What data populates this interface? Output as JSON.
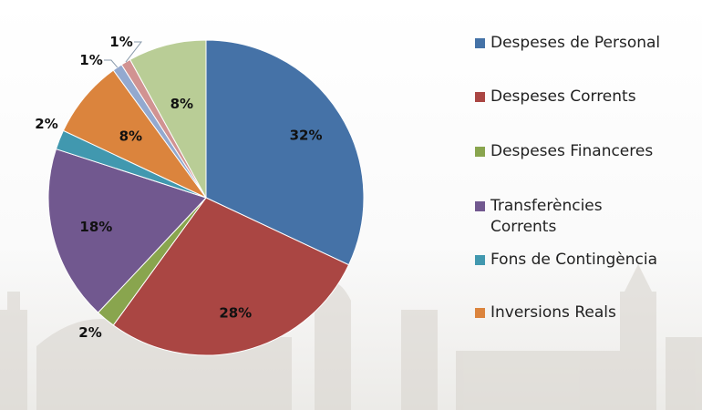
{
  "chart_data": {
    "type": "pie",
    "title": "",
    "start": "top",
    "direction": "clockwise",
    "slices": [
      {
        "name": "Despeses de Personal",
        "value": 32,
        "label": "32%",
        "color": "#4572a7"
      },
      {
        "name": "Despeses Corrents",
        "value": 28,
        "label": "28%",
        "color": "#aa4643"
      },
      {
        "name": "Despeses Financeres",
        "value": 2,
        "label": "2%",
        "color": "#89a54e"
      },
      {
        "name": "Transferències Corrents",
        "value": 18,
        "label": "18%",
        "color": "#71588f"
      },
      {
        "name": "Fons de Contingència",
        "value": 2,
        "label": "2%",
        "color": "#4198af"
      },
      {
        "name": "Inversions Reals",
        "value": 8,
        "label": "8%",
        "color": "#db843d"
      },
      {
        "name": "",
        "value": 1,
        "label": "1%",
        "color": "#93a9cf"
      },
      {
        "name": "",
        "value": 1,
        "label": "1%",
        "color": "#d19392"
      },
      {
        "name": "",
        "value": 8,
        "label": "8%",
        "color": "#b9cd96"
      }
    ],
    "legend": {
      "placement": "right",
      "entries": [
        {
          "label": "Despeses de Personal",
          "color": "#4572a7"
        },
        {
          "label": "Despeses Corrents",
          "color": "#aa4643"
        },
        {
          "label": "Despeses Financeres",
          "color": "#89a54e"
        },
        {
          "label": "Transferències Corrents",
          "color": "#71588f"
        },
        {
          "label": "Fons de Contingència",
          "color": "#4198af"
        },
        {
          "label": "Inversions Reals",
          "color": "#db843d"
        }
      ]
    }
  }
}
